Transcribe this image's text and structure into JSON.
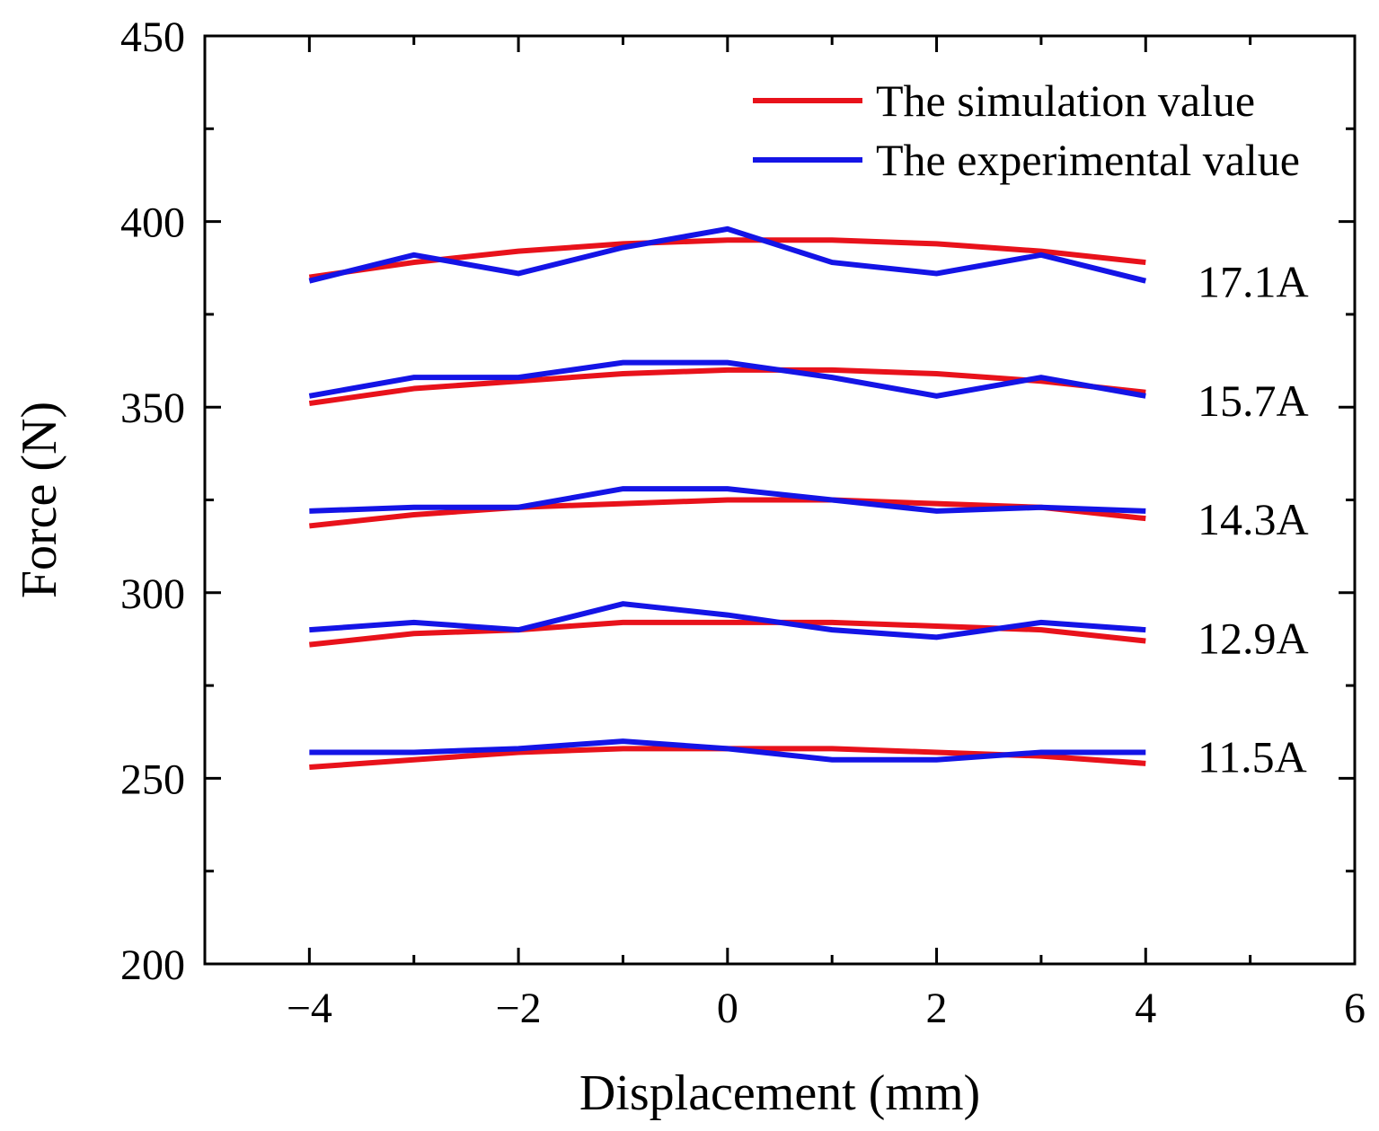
{
  "chart_data": {
    "type": "line",
    "title": "",
    "xlabel": "Displacement (mm)",
    "ylabel": "Force (N)",
    "xlim": [
      -5,
      6
    ],
    "ylim": [
      200,
      450
    ],
    "xticks": [
      -4,
      -2,
      0,
      2,
      4,
      6
    ],
    "xtick_labels": [
      "−4",
      "−2",
      "0",
      "2",
      "4",
      "6"
    ],
    "yticks": [
      200,
      250,
      300,
      350,
      400,
      450
    ],
    "ytick_labels": [
      "200",
      "250",
      "300",
      "350",
      "400",
      "450"
    ],
    "grid": false,
    "legend_position": "top-right",
    "legend": [
      {
        "label": "The simulation value",
        "color": "#e8121b"
      },
      {
        "label": "The experimental value",
        "color": "#1414e6"
      }
    ],
    "x": [
      -4,
      -3,
      -2,
      -1,
      0,
      1,
      2,
      3,
      4
    ],
    "groups": [
      {
        "label": "17.1A",
        "label_y": 384,
        "simulation": [
          385,
          389,
          392,
          394,
          395,
          395,
          394,
          392,
          389
        ],
        "experimental": [
          384,
          391,
          386,
          393,
          398,
          389,
          386,
          391,
          384
        ]
      },
      {
        "label": "15.7A",
        "label_y": 352,
        "simulation": [
          351,
          355,
          357,
          359,
          360,
          360,
          359,
          357,
          354
        ],
        "experimental": [
          353,
          358,
          358,
          362,
          362,
          358,
          353,
          358,
          353
        ]
      },
      {
        "label": "14.3A",
        "label_y": 320,
        "simulation": [
          318,
          321,
          323,
          324,
          325,
          325,
          324,
          323,
          320
        ],
        "experimental": [
          322,
          323,
          323,
          328,
          328,
          325,
          322,
          323,
          322
        ]
      },
      {
        "label": "12.9A",
        "label_y": 288,
        "simulation": [
          286,
          289,
          290,
          292,
          292,
          292,
          291,
          290,
          287
        ],
        "experimental": [
          290,
          292,
          290,
          297,
          294,
          290,
          288,
          292,
          290
        ]
      },
      {
        "label": "11.5A",
        "label_y": 256,
        "simulation": [
          253,
          255,
          257,
          258,
          258,
          258,
          257,
          256,
          254
        ],
        "experimental": [
          257,
          257,
          258,
          260,
          258,
          255,
          255,
          257,
          257
        ]
      }
    ]
  }
}
